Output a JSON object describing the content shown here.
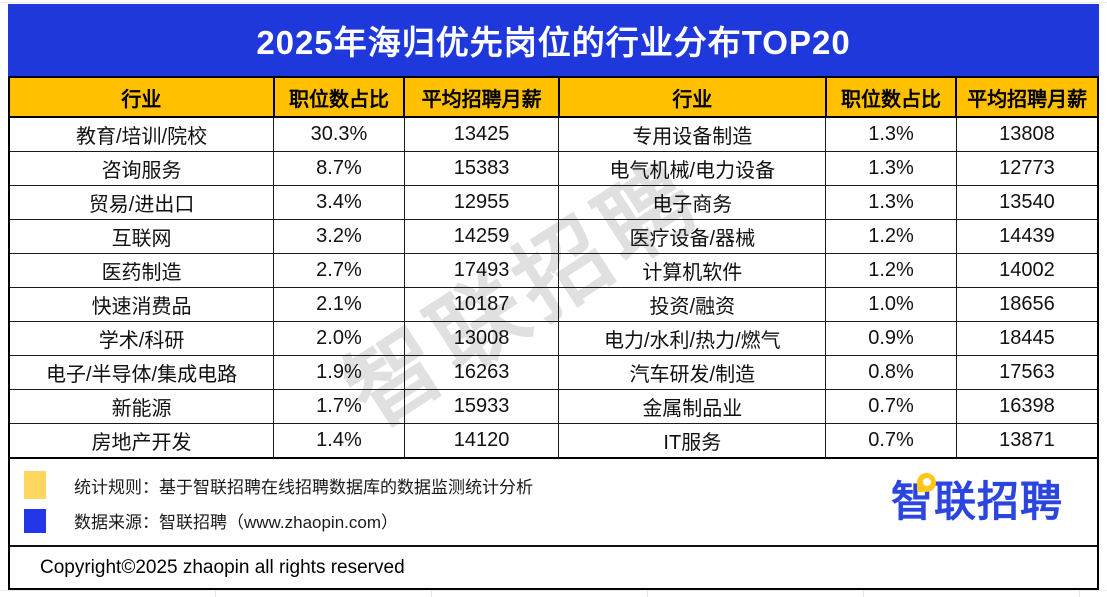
{
  "title": "2025年海归优先岗位的行业分布TOP20",
  "table": {
    "headers": [
      "行业",
      "职位数占比",
      "平均招聘月薪",
      "行业",
      "职位数占比",
      "平均招聘月薪"
    ],
    "rows": [
      {
        "left": {
          "industry": "教育/培训/院校",
          "share": "30.3%",
          "salary": "13425"
        },
        "right": {
          "industry": "专用设备制造",
          "share": "1.3%",
          "salary": "13808"
        }
      },
      {
        "left": {
          "industry": "咨询服务",
          "share": "8.7%",
          "salary": "15383"
        },
        "right": {
          "industry": "电气机械/电力设备",
          "share": "1.3%",
          "salary": "12773"
        }
      },
      {
        "left": {
          "industry": "贸易/进出口",
          "share": "3.4%",
          "salary": "12955"
        },
        "right": {
          "industry": "电子商务",
          "share": "1.3%",
          "salary": "13540"
        }
      },
      {
        "left": {
          "industry": "互联网",
          "share": "3.2%",
          "salary": "14259"
        },
        "right": {
          "industry": "医疗设备/器械",
          "share": "1.2%",
          "salary": "14439"
        }
      },
      {
        "left": {
          "industry": "医药制造",
          "share": "2.7%",
          "salary": "17493"
        },
        "right": {
          "industry": "计算机软件",
          "share": "1.2%",
          "salary": "14002"
        }
      },
      {
        "left": {
          "industry": "快速消费品",
          "share": "2.1%",
          "salary": "10187"
        },
        "right": {
          "industry": "投资/融资",
          "share": "1.0%",
          "salary": "18656"
        }
      },
      {
        "left": {
          "industry": "学术/科研",
          "share": "2.0%",
          "salary": "13008"
        },
        "right": {
          "industry": "电力/水利/热力/燃气",
          "share": "0.9%",
          "salary": "18445"
        }
      },
      {
        "left": {
          "industry": "电子/半导体/集成电路",
          "share": "1.9%",
          "salary": "16263"
        },
        "right": {
          "industry": "汽车研发/制造",
          "share": "0.8%",
          "salary": "17563"
        }
      },
      {
        "left": {
          "industry": "新能源",
          "share": "1.7%",
          "salary": "15933"
        },
        "right": {
          "industry": "金属制品业",
          "share": "0.7%",
          "salary": "16398"
        }
      },
      {
        "left": {
          "industry": "房地产开发",
          "share": "1.4%",
          "salary": "14120"
        },
        "right": {
          "industry": "IT服务",
          "share": "0.7%",
          "salary": "13871"
        }
      }
    ]
  },
  "footer": {
    "note1": "统计规则：基于智联招聘在线招聘数据库的数据监测统计分析",
    "note2": "数据来源：智联招聘（www.zhaopin.com）",
    "copyright": "Copyright©2025 zhaopin all rights reserved"
  },
  "logo": {
    "text": "智联招聘"
  },
  "watermark": "智联招聘",
  "colors": {
    "banner_blue": "#1F38DC",
    "header_gold": "#FFC000",
    "legend_yellow": "#FFD75E",
    "legend_blue": "#2337E8",
    "logo_blue": "#2B46E0",
    "logo_pin_yellow": "#FFC61A"
  },
  "chart_data": {
    "type": "table",
    "title": "2025年海归优先岗位的行业分布TOP20",
    "columns": [
      "行业",
      "职位数占比",
      "平均招聘月薪"
    ],
    "rows": [
      [
        "教育/培训/院校",
        "30.3%",
        13425
      ],
      [
        "咨询服务",
        "8.7%",
        15383
      ],
      [
        "贸易/进出口",
        "3.4%",
        12955
      ],
      [
        "互联网",
        "3.2%",
        14259
      ],
      [
        "医药制造",
        "2.7%",
        17493
      ],
      [
        "快速消费品",
        "2.1%",
        10187
      ],
      [
        "学术/科研",
        "2.0%",
        13008
      ],
      [
        "电子/半导体/集成电路",
        "1.9%",
        16263
      ],
      [
        "新能源",
        "1.7%",
        15933
      ],
      [
        "房地产开发",
        "1.4%",
        14120
      ],
      [
        "专用设备制造",
        "1.3%",
        13808
      ],
      [
        "电气机械/电力设备",
        "1.3%",
        12773
      ],
      [
        "电子商务",
        "1.3%",
        13540
      ],
      [
        "医疗设备/器械",
        "1.2%",
        14439
      ],
      [
        "计算机软件",
        "1.2%",
        14002
      ],
      [
        "投资/融资",
        "1.0%",
        18656
      ],
      [
        "电力/水利/热力/燃气",
        "0.9%",
        18445
      ],
      [
        "汽车研发/制造",
        "0.8%",
        17563
      ],
      [
        "金属制品业",
        "0.7%",
        16398
      ],
      [
        "IT服务",
        "0.7%",
        13871
      ]
    ]
  }
}
